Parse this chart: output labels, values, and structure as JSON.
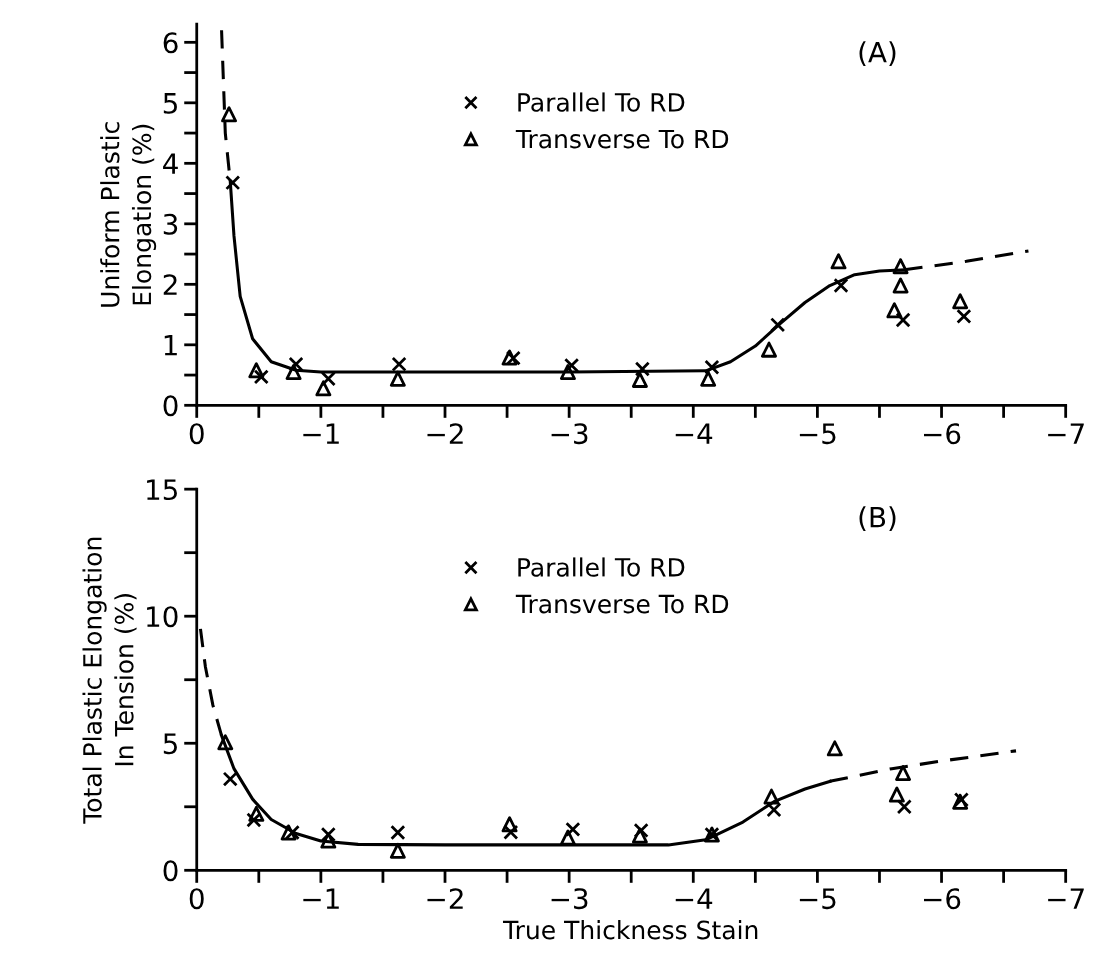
{
  "chart_data": [
    {
      "type": "scatter",
      "ylabel": "Uniform Plastic\nElongation (%)",
      "annotations": [
        "(A)"
      ],
      "legend": "top",
      "grid": false,
      "xlim": [
        0,
        -7
      ],
      "ylim": [
        0,
        6.3
      ],
      "xticks": [
        0,
        {
          "value": -0.5,
          "label": null
        },
        {
          "value": -1,
          "label": "−1"
        },
        {
          "value": -1.5,
          "label": null
        },
        {
          "value": -2,
          "label": "−2"
        },
        {
          "value": -2.5,
          "label": null
        },
        {
          "value": -3,
          "label": "−3"
        },
        {
          "value": -3.5,
          "label": null
        },
        {
          "value": -4,
          "label": "−4"
        },
        {
          "value": -4.5,
          "label": null
        },
        {
          "value": -5,
          "label": "−5"
        },
        {
          "value": -5.5,
          "label": null
        },
        {
          "value": -6,
          "label": "−6"
        },
        {
          "value": -6.5,
          "label": null
        },
        {
          "value": -7,
          "label": "−7"
        }
      ],
      "yticks": [
        0,
        {
          "value": 0.5,
          "label": null
        },
        1,
        {
          "value": 1.5,
          "label": null
        },
        2,
        {
          "value": 2.5,
          "label": null
        },
        3,
        {
          "value": 3.5,
          "label": null
        },
        4,
        {
          "value": 4.5,
          "label": null
        },
        5,
        {
          "value": 5.5,
          "label": null
        },
        6
      ],
      "series": [
        {
          "name": "Parallel To RD",
          "type": "scatter",
          "marker": "cross",
          "color": "#000000",
          "x": [
            -0.29,
            -0.52,
            -0.8,
            -1.06,
            -1.63,
            -2.55,
            -3.02,
            -3.59,
            -4.15,
            -4.68,
            -5.19,
            -5.69,
            -6.18
          ],
          "values": [
            3.68,
            0.47,
            0.68,
            0.44,
            0.68,
            0.78,
            0.66,
            0.6,
            0.63,
            1.33,
            1.98,
            1.41,
            1.47
          ]
        },
        {
          "name": "Transverse To RD",
          "type": "scatter",
          "marker": "triangle",
          "color": "#000000",
          "x": [
            -0.26,
            -0.48,
            -0.78,
            -1.02,
            -1.62,
            -2.52,
            -2.99,
            -3.57,
            -4.12,
            -4.61,
            -5.17,
            -5.67,
            -5.67,
            -5.62,
            -6.15
          ],
          "values": [
            4.81,
            0.58,
            0.55,
            0.28,
            0.44,
            0.79,
            0.55,
            0.42,
            0.44,
            0.92,
            2.38,
            2.3,
            1.98,
            1.57,
            1.72
          ]
        },
        {
          "type": "line",
          "marker": "none",
          "line_style": "dashed",
          "color": "#000000",
          "x": [
            -0.2,
            -0.23,
            -0.27
          ],
          "values": [
            6.2,
            4.5,
            3.7
          ]
        },
        {
          "type": "line",
          "marker": "none",
          "line_style": "solid",
          "color": "#000000",
          "x": [
            -0.27,
            -0.3,
            -0.35,
            -0.45,
            -0.6,
            -0.8,
            -1.0,
            -2.0,
            -3.0,
            -4.1,
            -4.3,
            -4.5,
            -4.7,
            -4.9,
            -5.1,
            -5.3,
            -5.5,
            -5.7
          ],
          "values": [
            3.7,
            2.8,
            1.8,
            1.1,
            0.72,
            0.58,
            0.55,
            0.55,
            0.55,
            0.57,
            0.72,
            0.98,
            1.35,
            1.7,
            1.98,
            2.16,
            2.22,
            2.24
          ]
        },
        {
          "type": "line",
          "marker": "none",
          "line_style": "dashed",
          "color": "#000000",
          "x": [
            -5.7,
            -6.2,
            -6.7
          ],
          "values": [
            2.24,
            2.38,
            2.55
          ]
        }
      ]
    },
    {
      "type": "scatter",
      "ylabel": "Total Plastic Elongation\nIn Tension (%)",
      "xlabel": "True Thickness Stain",
      "annotations": [
        "(B)"
      ],
      "legend": "top",
      "grid": false,
      "xlim": [
        0,
        -7
      ],
      "ylim": [
        0,
        15
      ],
      "xticks": [
        0,
        {
          "value": -0.5,
          "label": null
        },
        {
          "value": -1,
          "label": "−1"
        },
        {
          "value": -1.5,
          "label": null
        },
        {
          "value": -2,
          "label": "−2"
        },
        {
          "value": -2.5,
          "label": null
        },
        {
          "value": -3,
          "label": "−3"
        },
        {
          "value": -3.5,
          "label": null
        },
        {
          "value": -4,
          "label": "−4"
        },
        {
          "value": -4.5,
          "label": null
        },
        {
          "value": -5,
          "label": "−5"
        },
        {
          "value": -5.5,
          "label": null
        },
        {
          "value": -6,
          "label": "−6"
        },
        {
          "value": -6.5,
          "label": null
        },
        {
          "value": -7,
          "label": "−7"
        }
      ],
      "yticks": [
        0,
        {
          "value": 2.5,
          "label": null
        },
        5,
        {
          "value": 7.5,
          "label": null
        },
        10,
        {
          "value": 12.5,
          "label": null
        },
        15
      ],
      "series": [
        {
          "name": "Parallel To RD",
          "type": "scatter",
          "marker": "cross",
          "color": "#000000",
          "x": [
            -0.27,
            -0.46,
            -0.77,
            -1.06,
            -1.62,
            -2.53,
            -3.03,
            -3.58,
            -4.15,
            -4.65,
            -5.7,
            -6.16
          ],
          "values": [
            3.59,
            1.98,
            1.49,
            1.41,
            1.49,
            1.5,
            1.61,
            1.57,
            1.41,
            2.38,
            2.5,
            2.78
          ]
        },
        {
          "name": "Transverse To RD",
          "type": "scatter",
          "marker": "triangle",
          "color": "#000000",
          "x": [
            -0.23,
            -0.48,
            -0.74,
            -1.06,
            -1.62,
            -2.52,
            -2.99,
            -3.57,
            -4.15,
            -4.63,
            -5.14,
            -5.69,
            -5.64,
            -6.15
          ],
          "values": [
            5.04,
            2.22,
            1.49,
            1.17,
            0.77,
            1.81,
            1.29,
            1.37,
            1.41,
            2.9,
            4.8,
            3.83,
            2.98,
            2.7
          ]
        },
        {
          "type": "line",
          "marker": "none",
          "line_style": "dashed",
          "color": "#000000",
          "x": [
            -0.03,
            -0.07,
            -0.13,
            -0.2
          ],
          "values": [
            9.5,
            8.0,
            6.5,
            5.3
          ]
        },
        {
          "type": "line",
          "marker": "none",
          "line_style": "solid",
          "color": "#000000",
          "x": [
            -0.2,
            -0.3,
            -0.45,
            -0.6,
            -0.8,
            -1.0,
            -1.3,
            -2.0,
            -3.0,
            -3.8,
            -4.1,
            -4.4,
            -4.65,
            -4.9,
            -5.1
          ],
          "values": [
            5.3,
            4.0,
            2.8,
            2.0,
            1.45,
            1.15,
            1.02,
            1.0,
            1.0,
            1.0,
            1.2,
            1.9,
            2.7,
            3.2,
            3.5
          ]
        },
        {
          "type": "line",
          "marker": "none",
          "line_style": "dashed",
          "color": "#000000",
          "x": [
            -5.1,
            -5.6,
            -6.0,
            -6.6
          ],
          "values": [
            3.5,
            4.0,
            4.3,
            4.7
          ]
        }
      ]
    }
  ]
}
